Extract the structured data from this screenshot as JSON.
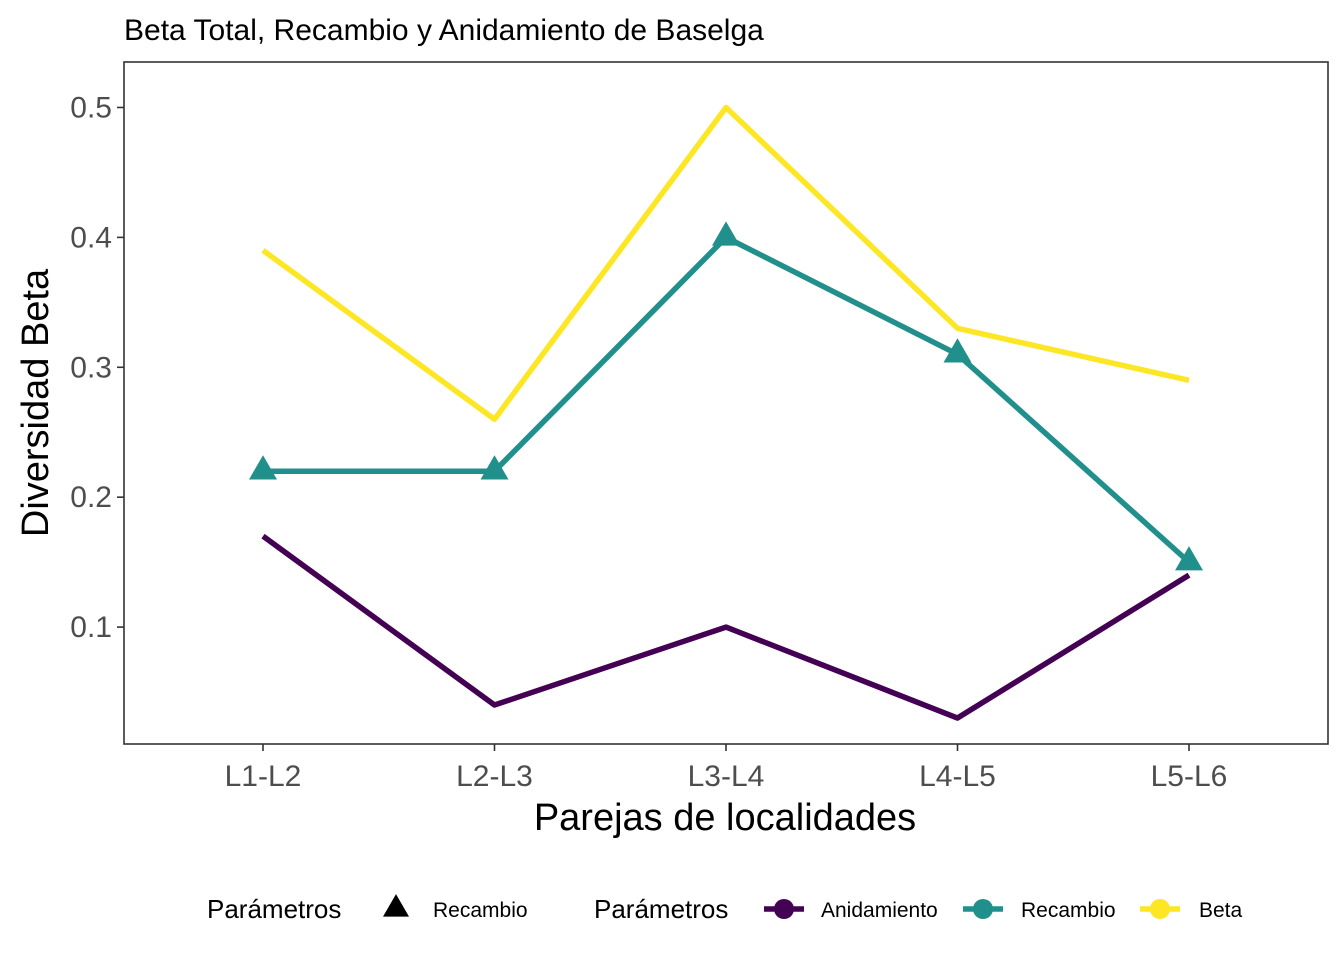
{
  "chart_data": {
    "type": "line",
    "title": "Beta Total, Recambio y Anidamiento de Baselga",
    "xlabel": "Parejas de localidades",
    "ylabel": "Diversidad Beta",
    "categories": [
      "L1-L2",
      "L2-L3",
      "L3-L4",
      "L4-L5",
      "L5-L6"
    ],
    "ylim": [
      0.01,
      0.535
    ],
    "yticks": [
      0.1,
      0.2,
      0.3,
      0.4,
      0.5
    ],
    "ytick_labels": [
      "0.1",
      "0.2",
      "0.3",
      "0.4",
      "0.5"
    ],
    "grid": false,
    "legend_position": "bottom",
    "series": [
      {
        "name": "Anidamiento",
        "color": "#440154",
        "marker": "none",
        "values": [
          0.17,
          0.04,
          0.1,
          0.03,
          0.14
        ]
      },
      {
        "name": "Recambio",
        "color": "#21908C",
        "marker": "triangle",
        "values": [
          0.22,
          0.22,
          0.4,
          0.31,
          0.15
        ]
      },
      {
        "name": "Beta",
        "color": "#FDE725",
        "marker": "none",
        "values": [
          0.39,
          0.26,
          0.5,
          0.33,
          0.29
        ]
      }
    ],
    "legends": [
      {
        "title": "Parámetros",
        "kind": "shape",
        "items": [
          {
            "label": "Recambio",
            "shape": "triangle",
            "color": "#000000"
          }
        ]
      },
      {
        "title": "Parámetros",
        "kind": "color",
        "items": [
          {
            "label": "Anidamiento",
            "color": "#440154"
          },
          {
            "label": "Recambio",
            "color": "#21908C"
          },
          {
            "label": "Beta",
            "color": "#FDE725"
          }
        ]
      }
    ]
  }
}
